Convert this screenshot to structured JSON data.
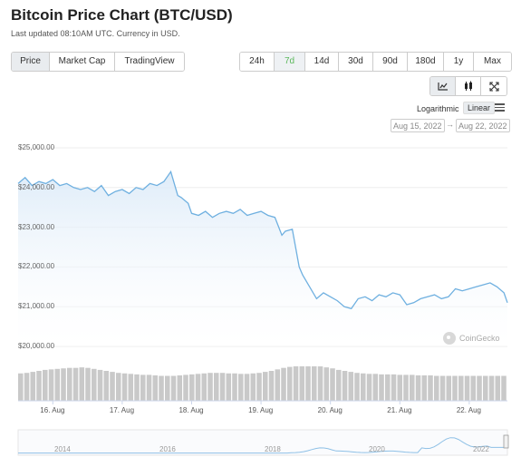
{
  "header": {
    "title": "Bitcoin Price Chart (BTC/USD)",
    "subtitle": "Last updated 08:10AM UTC. Currency in USD."
  },
  "view_tabs": [
    {
      "label": "Price",
      "active": true
    },
    {
      "label": "Market Cap",
      "active": false
    },
    {
      "label": "TradingView",
      "active": false
    }
  ],
  "range_tabs": [
    {
      "label": "24h",
      "active": false
    },
    {
      "label": "7d",
      "active": true
    },
    {
      "label": "14d",
      "active": false
    },
    {
      "label": "30d",
      "active": false
    },
    {
      "label": "90d",
      "active": false
    },
    {
      "label": "180d",
      "active": false
    },
    {
      "label": "1y",
      "active": false
    },
    {
      "label": "Max",
      "active": false
    }
  ],
  "tools": {
    "items": [
      {
        "icon": "line-chart-icon",
        "active": true
      },
      {
        "icon": "candlestick-icon",
        "active": false
      },
      {
        "icon": "expand-icon",
        "active": false
      }
    ]
  },
  "scale": {
    "logarithmic_label": "Logarithmic",
    "linear_label": "Linear"
  },
  "date_range": {
    "from": "Aug 15, 2022",
    "arrow": "→",
    "to": "Aug 22, 2022"
  },
  "watermark": "CoinGecko",
  "colors": {
    "line": "#6fb0e0",
    "area": "#e8f2fb",
    "volume": "#c9c9c9",
    "accent_green": "#5cb85c"
  },
  "chart_data": {
    "type": "area",
    "currency": "USD",
    "y_ticks": [
      "$25,000.00",
      "$24,000.00",
      "$23,000.00",
      "$22,000.00",
      "$21,000.00",
      "$20,000.00"
    ],
    "ylim": [
      20000,
      25000
    ],
    "x_ticks": [
      "16. Aug",
      "17. Aug",
      "18. Aug",
      "19. Aug",
      "20. Aug",
      "21. Aug",
      "22. Aug"
    ],
    "xlim": [
      15.5,
      22.55
    ],
    "series": [
      {
        "x": [
          15.5,
          15.6,
          15.7,
          15.8,
          15.9,
          16.0,
          16.1,
          16.2,
          16.3,
          16.4,
          16.5,
          16.6,
          16.7,
          16.8,
          16.9,
          17.0,
          17.1,
          17.2,
          17.3,
          17.4,
          17.5,
          17.6,
          17.7,
          17.8,
          17.85,
          17.95,
          18.0,
          18.1,
          18.2,
          18.3,
          18.4,
          18.5,
          18.6,
          18.7,
          18.8,
          18.9,
          19.0,
          19.1,
          19.2,
          19.3,
          19.35,
          19.45,
          19.55,
          19.6,
          19.7,
          19.8,
          19.9,
          20.0,
          20.1,
          20.2,
          20.3,
          20.4,
          20.5,
          20.6,
          20.7,
          20.8,
          20.9,
          21.0,
          21.1,
          21.2,
          21.3,
          21.4,
          21.5,
          21.6,
          21.7,
          21.8,
          21.9,
          22.0,
          22.1,
          22.2,
          22.3,
          22.4,
          22.5,
          22.55
        ],
        "values": [
          24100,
          24250,
          24050,
          24150,
          24100,
          24200,
          24050,
          24100,
          24000,
          23950,
          24000,
          23900,
          24050,
          23800,
          23900,
          23950,
          23850,
          24000,
          23950,
          24100,
          24050,
          24150,
          24400,
          23800,
          23750,
          23600,
          23350,
          23300,
          23400,
          23250,
          23350,
          23400,
          23350,
          23450,
          23300,
          23350,
          23400,
          23300,
          23250,
          22800,
          22900,
          22950,
          22000,
          21800,
          21500,
          21200,
          21350,
          21250,
          21150,
          21000,
          20950,
          21200,
          21250,
          21150,
          21300,
          21250,
          21350,
          21300,
          21050,
          21100,
          21200,
          21250,
          21300,
          21200,
          21250,
          21450,
          21400,
          21450,
          21500,
          21550,
          21600,
          21500,
          21350,
          21100
        ]
      }
    ],
    "navigator": {
      "x_ticks": [
        "2014",
        "2016",
        "2018",
        "2020",
        "2022"
      ]
    },
    "volume": {
      "count": 80,
      "levels": [
        0.55,
        0.56,
        0.58,
        0.6,
        0.62,
        0.63,
        0.64,
        0.65,
        0.66,
        0.66,
        0.67,
        0.66,
        0.64,
        0.62,
        0.6,
        0.58,
        0.56,
        0.55,
        0.54,
        0.53,
        0.52,
        0.52,
        0.51,
        0.5,
        0.5,
        0.5,
        0.51,
        0.52,
        0.53,
        0.54,
        0.55,
        0.56,
        0.56,
        0.56,
        0.55,
        0.55,
        0.54,
        0.54,
        0.55,
        0.56,
        0.58,
        0.6,
        0.63,
        0.66,
        0.68,
        0.7,
        0.7,
        0.71,
        0.7,
        0.69,
        0.67,
        0.65,
        0.62,
        0.6,
        0.58,
        0.56,
        0.55,
        0.54,
        0.54,
        0.53,
        0.53,
        0.53,
        0.52,
        0.52,
        0.52,
        0.51,
        0.51,
        0.51,
        0.5,
        0.5,
        0.5,
        0.5,
        0.5,
        0.5,
        0.5,
        0.5,
        0.5,
        0.5,
        0.5,
        0.5
      ]
    }
  }
}
